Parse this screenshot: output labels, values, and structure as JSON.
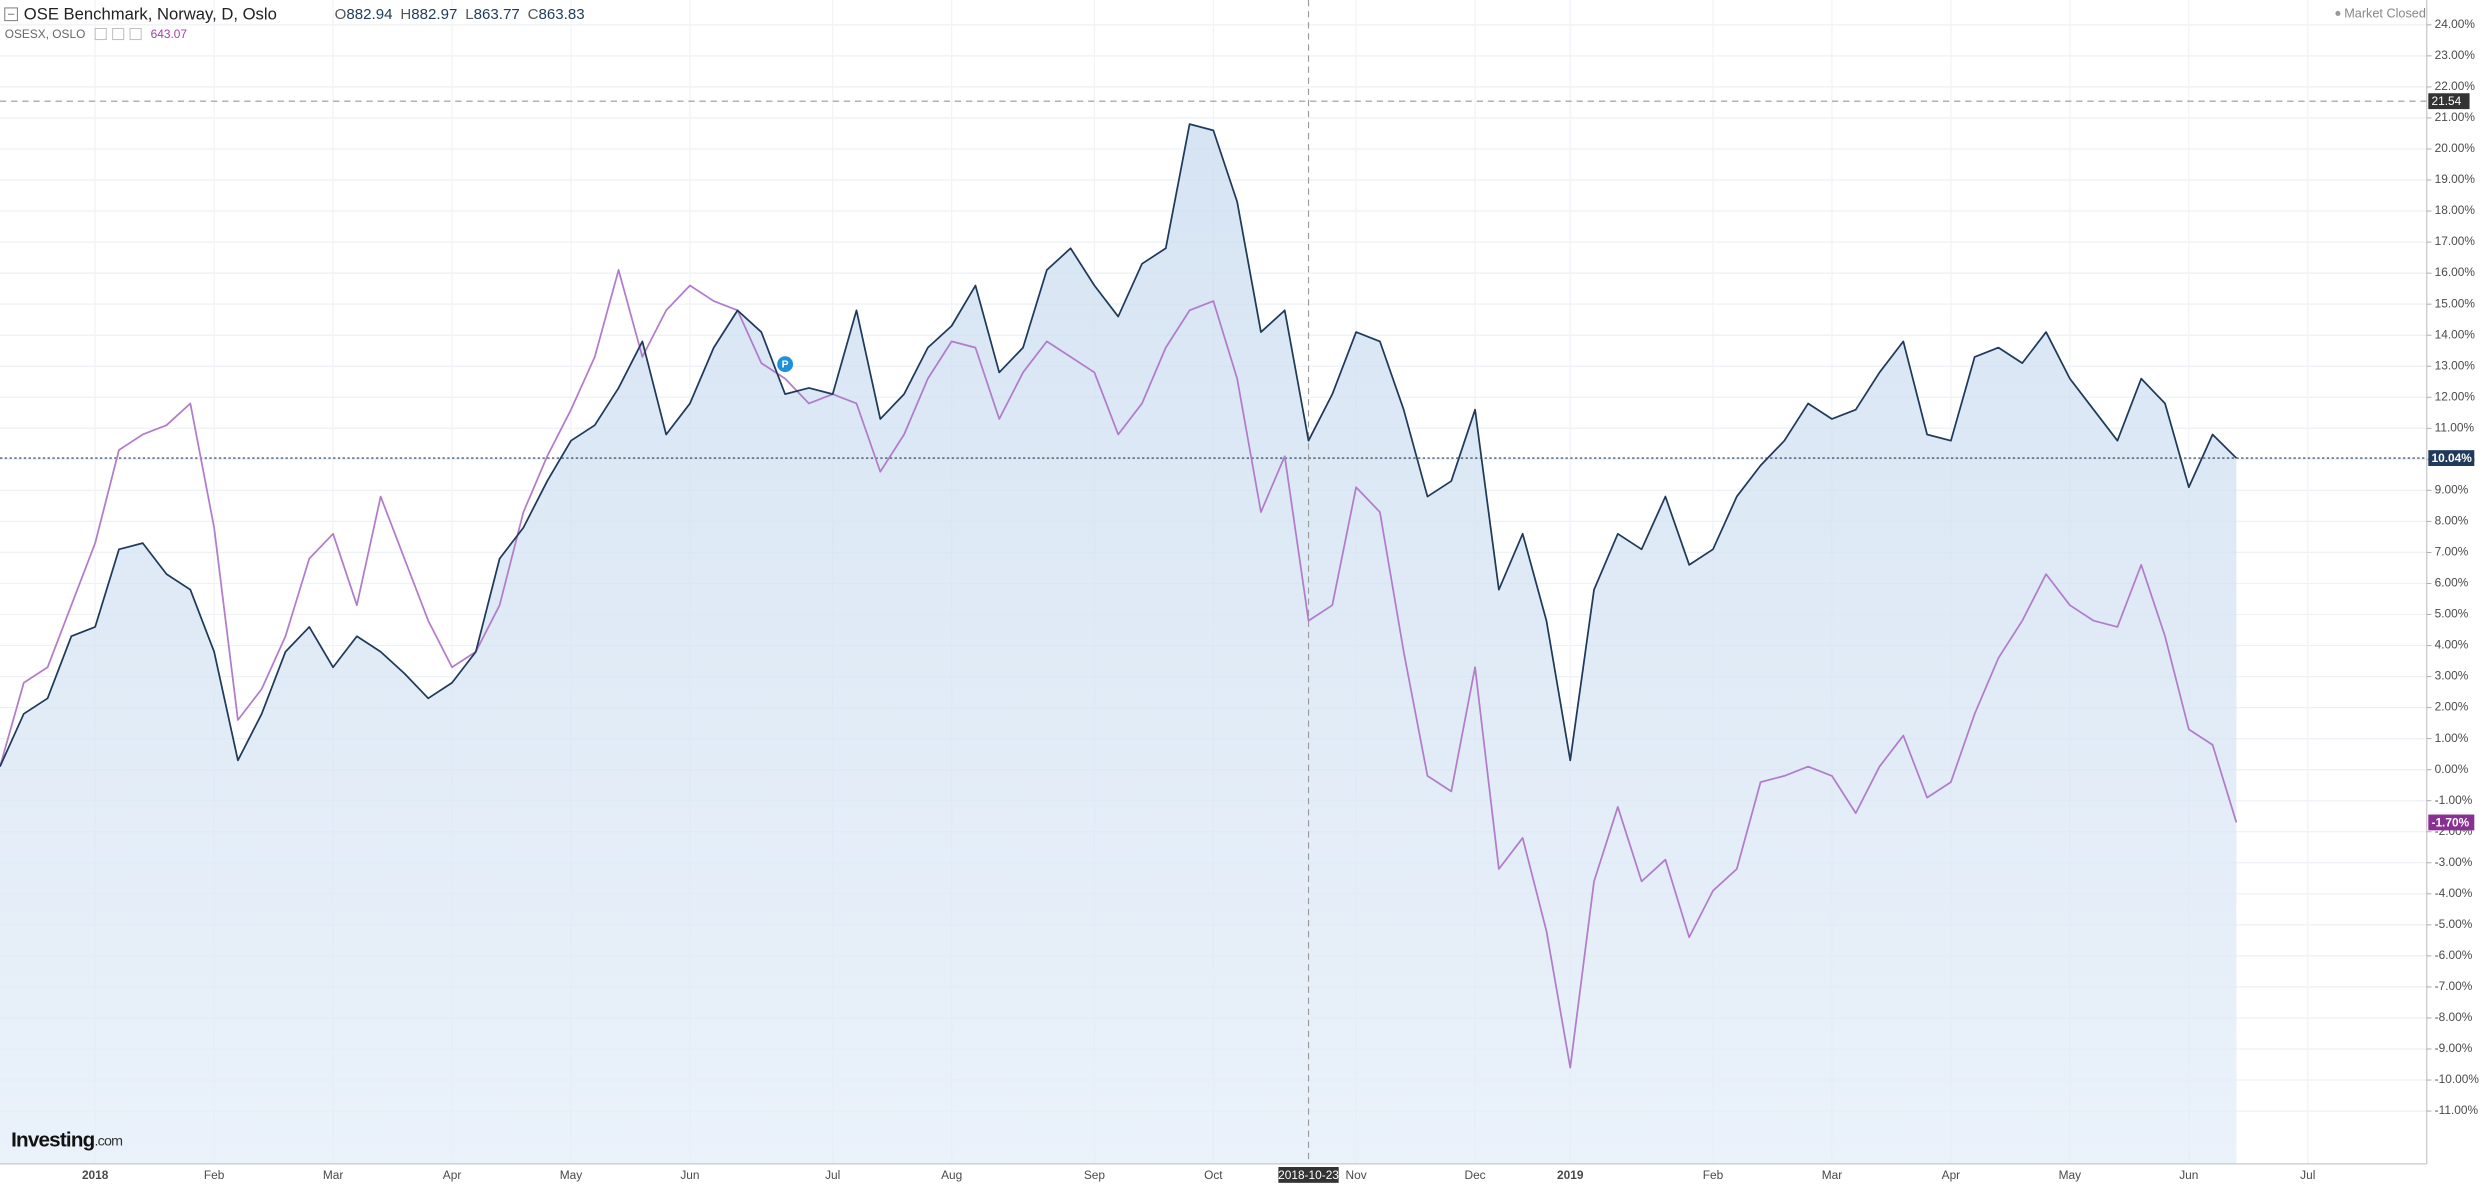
{
  "chart_data": {
    "type": "line",
    "ohlc": [
      {
        "key": "O",
        "value": 882.94
      },
      {
        "key": "H",
        "value": 882.97
      },
      {
        "key": "L",
        "value": 863.77
      },
      {
        "key": "C",
        "value": 863.83
      }
    ],
    "status": "Market Closed",
    "logo": {
      "main": "Investing",
      "suffix": ".com"
    },
    "marker": "P",
    "categories": [
      null,
      null,
      null,
      null,
      "2018",
      null,
      null,
      null,
      null,
      "Feb",
      null,
      null,
      null,
      null,
      "Mar",
      null,
      null,
      null,
      null,
      "Apr",
      null,
      null,
      null,
      null,
      "May",
      null,
      null,
      null,
      null,
      "Jun",
      null,
      null,
      null,
      null,
      null,
      "Jul",
      null,
      null,
      null,
      null,
      "Aug",
      null,
      null,
      null,
      null,
      null,
      "Sep",
      null,
      null,
      null,
      null,
      "Oct",
      null,
      null,
      null,
      "2018-10-23",
      null,
      "Nov",
      null,
      null,
      null,
      null,
      "Dec",
      null,
      null,
      null,
      "2019",
      null,
      null,
      null,
      null,
      null,
      "Feb",
      null,
      null,
      null,
      null,
      "Mar",
      null,
      null,
      null,
      null,
      "Apr",
      null,
      null,
      null,
      null,
      "May",
      null,
      null,
      null,
      null,
      "Jun",
      null,
      null,
      null,
      null,
      "Jul"
    ],
    "series": [
      {
        "name": "OSE Benchmark, Norway, D, Oslo",
        "color": "#1f3a5a",
        "area": true,
        "price_line": true,
        "last_label": "10.04%",
        "values": [
          0.1,
          1.8,
          2.3,
          4.3,
          4.6,
          7.1,
          7.3,
          6.3,
          5.8,
          3.8,
          0.3,
          1.8,
          3.8,
          4.6,
          3.3,
          4.3,
          3.8,
          3.1,
          2.3,
          2.8,
          3.8,
          6.8,
          7.8,
          9.3,
          10.6,
          11.1,
          12.3,
          13.8,
          10.8,
          11.8,
          13.6,
          14.8,
          14.1,
          12.1,
          12.3,
          12.1,
          14.8,
          11.3,
          12.1,
          13.6,
          14.3,
          15.6,
          12.8,
          13.6,
          16.1,
          16.8,
          15.6,
          14.6,
          16.3,
          16.8,
          20.8,
          20.6,
          18.3,
          14.1,
          14.8,
          10.6,
          12.1,
          14.1,
          13.8,
          11.6,
          8.8,
          9.3,
          11.6,
          5.8,
          7.6,
          4.8,
          0.3,
          5.8,
          7.6,
          7.1,
          8.8,
          6.6,
          7.1,
          8.8,
          9.8,
          10.6,
          11.8,
          11.3,
          11.6,
          12.8,
          13.8,
          10.8,
          10.6,
          13.3,
          13.6,
          13.1,
          14.1,
          12.6,
          11.6,
          10.6,
          12.6,
          11.8,
          9.1,
          10.8,
          10.04,
          null,
          null,
          null
        ]
      },
      {
        "name": "OSESX, OSLO",
        "color": "#b27ccb",
        "area": false,
        "price_line": false,
        "last_label": "-1.70%",
        "price": 643.07,
        "values": [
          0.1,
          2.8,
          3.3,
          5.3,
          7.3,
          10.3,
          10.8,
          11.1,
          11.8,
          7.8,
          1.6,
          2.6,
          4.3,
          6.8,
          7.6,
          5.3,
          8.8,
          6.8,
          4.8,
          3.3,
          3.8,
          5.3,
          8.3,
          10.1,
          11.6,
          13.3,
          16.1,
          13.3,
          14.8,
          15.6,
          15.1,
          14.8,
          13.1,
          12.6,
          11.8,
          12.1,
          11.8,
          9.6,
          10.8,
          12.6,
          13.8,
          13.6,
          11.3,
          12.8,
          13.8,
          13.3,
          12.8,
          10.8,
          11.8,
          13.6,
          14.8,
          15.1,
          12.6,
          8.3,
          10.1,
          4.8,
          5.3,
          9.1,
          8.3,
          3.8,
          -0.2,
          -0.7,
          3.3,
          -3.2,
          -2.2,
          -5.2,
          -9.6,
          -3.6,
          -1.2,
          -3.6,
          -2.9,
          -5.4,
          -3.9,
          -3.2,
          -0.4,
          -0.2,
          0.1,
          -0.2,
          -1.4,
          0.1,
          1.1,
          -0.9,
          -0.4,
          1.8,
          3.6,
          4.8,
          6.3,
          5.3,
          4.8,
          4.6,
          6.6,
          4.3,
          1.3,
          0.8,
          -1.7,
          null,
          null,
          null
        ]
      }
    ],
    "crosshair": {
      "y": 21.54
    },
    "ylim": [
      -12.7,
      24.8
    ],
    "yticks": [
      {
        "value": 24,
        "label": "24.00%"
      },
      {
        "value": 23,
        "label": "23.00%"
      },
      {
        "value": 22,
        "label": "22.00%"
      },
      {
        "value": 21,
        "label": "21.00%"
      },
      {
        "value": 20,
        "label": "20.00%"
      },
      {
        "value": 19,
        "label": "19.00%"
      },
      {
        "value": 18,
        "label": "18.00%"
      },
      {
        "value": 17,
        "label": "17.00%"
      },
      {
        "value": 16,
        "label": "16.00%"
      },
      {
        "value": 15,
        "label": "15.00%"
      },
      {
        "value": 14,
        "label": "14.00%"
      },
      {
        "value": 13,
        "label": "13.00%"
      },
      {
        "value": 12,
        "label": "12.00%"
      },
      {
        "value": 11,
        "label": "11.00%"
      },
      {
        "value": 10,
        "label": "10.00%"
      },
      {
        "value": 9,
        "label": "9.00%"
      },
      {
        "value": 8,
        "label": "8.00%"
      },
      {
        "value": 7,
        "label": "7.00%"
      },
      {
        "value": 6,
        "label": "6.00%"
      },
      {
        "value": 5,
        "label": "5.00%"
      },
      {
        "value": 4,
        "label": "4.00%"
      },
      {
        "value": 3,
        "label": "3.00%"
      },
      {
        "value": 2,
        "label": "2.00%"
      },
      {
        "value": 1,
        "label": "1.00%"
      },
      {
        "value": 0,
        "label": "0.00%"
      },
      {
        "value": -1,
        "label": "-1.00%"
      },
      {
        "value": -2,
        "label": "-2.00%"
      },
      {
        "value": -3,
        "label": "-3.00%"
      },
      {
        "value": -4,
        "label": "-4.00%"
      },
      {
        "value": -5,
        "label": "-5.00%"
      },
      {
        "value": -6,
        "label": "-6.00%"
      },
      {
        "value": -7,
        "label": "-7.00%"
      },
      {
        "value": -8,
        "label": "-8.00%"
      },
      {
        "value": -9,
        "label": "-9.00%"
      },
      {
        "value": -10,
        "label": "-10.00%"
      },
      {
        "value": -11,
        "label": "-11.00%"
      }
    ],
    "grid": true
  }
}
